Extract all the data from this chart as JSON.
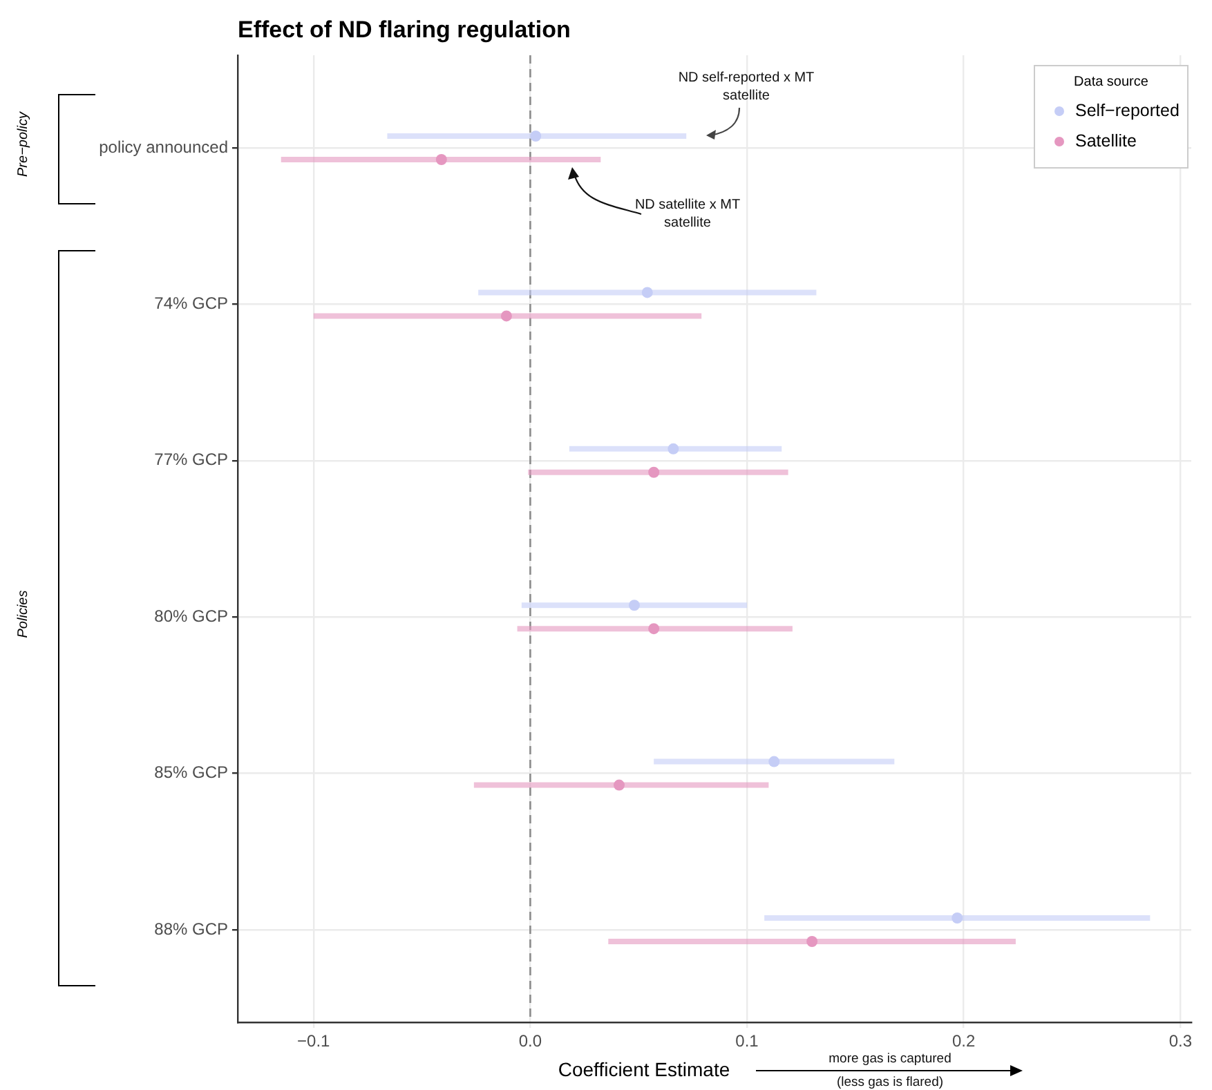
{
  "chart_data": {
    "type": "scatter",
    "orientation": "horizontal",
    "title": "Effect of ND flaring regulation",
    "xlabel": "Coefficient Estimate",
    "legend_title": "Data source",
    "legend": "top right",
    "grid": true,
    "marker": "circle",
    "categories": [
      "policy announced",
      "74% GCP",
      "77% GCP",
      "80% GCP",
      "85% GCP",
      "88% GCP"
    ],
    "xlim": [
      -0.135,
      0.305
    ],
    "xticks": [
      {
        "value": -0.1,
        "label": "−0.1"
      },
      {
        "value": 0,
        "label": "0.0"
      },
      0.1,
      0.2,
      0.3
    ],
    "series": [
      {
        "name": "Self−reported",
        "color": "#c5cdf6",
        "values": [
          0.0025,
          0.054,
          0.066,
          0.048,
          0.1125,
          0.197
        ],
        "errors": [
          [
            -0.066,
            0.072
          ],
          [
            -0.024,
            0.132
          ],
          [
            0.018,
            0.116
          ],
          [
            -0.004,
            0.1
          ],
          [
            0.057,
            0.168
          ],
          [
            0.108,
            0.286
          ]
        ]
      },
      {
        "name": "Satellite",
        "color": "#e597c0",
        "values": [
          -0.041,
          -0.011,
          0.057,
          0.057,
          0.041,
          0.13
        ],
        "errors": [
          [
            -0.115,
            0.0325
          ],
          [
            -0.1,
            0.079
          ],
          [
            -0.001,
            0.119
          ],
          [
            -0.006,
            0.121
          ],
          [
            -0.026,
            0.11
          ],
          [
            0.036,
            0.224
          ]
        ]
      }
    ],
    "ref_lines": [
      {
        "axis": "x",
        "value": 0,
        "color": "#8c8c8c",
        "line_style": "dashed"
      }
    ],
    "annotations": [
      "ND self-reported x MT satellite",
      "ND satellite x MT satellite",
      "more gas is captured",
      "(less gas is flared)",
      "Pre−policy",
      "Policies"
    ]
  }
}
